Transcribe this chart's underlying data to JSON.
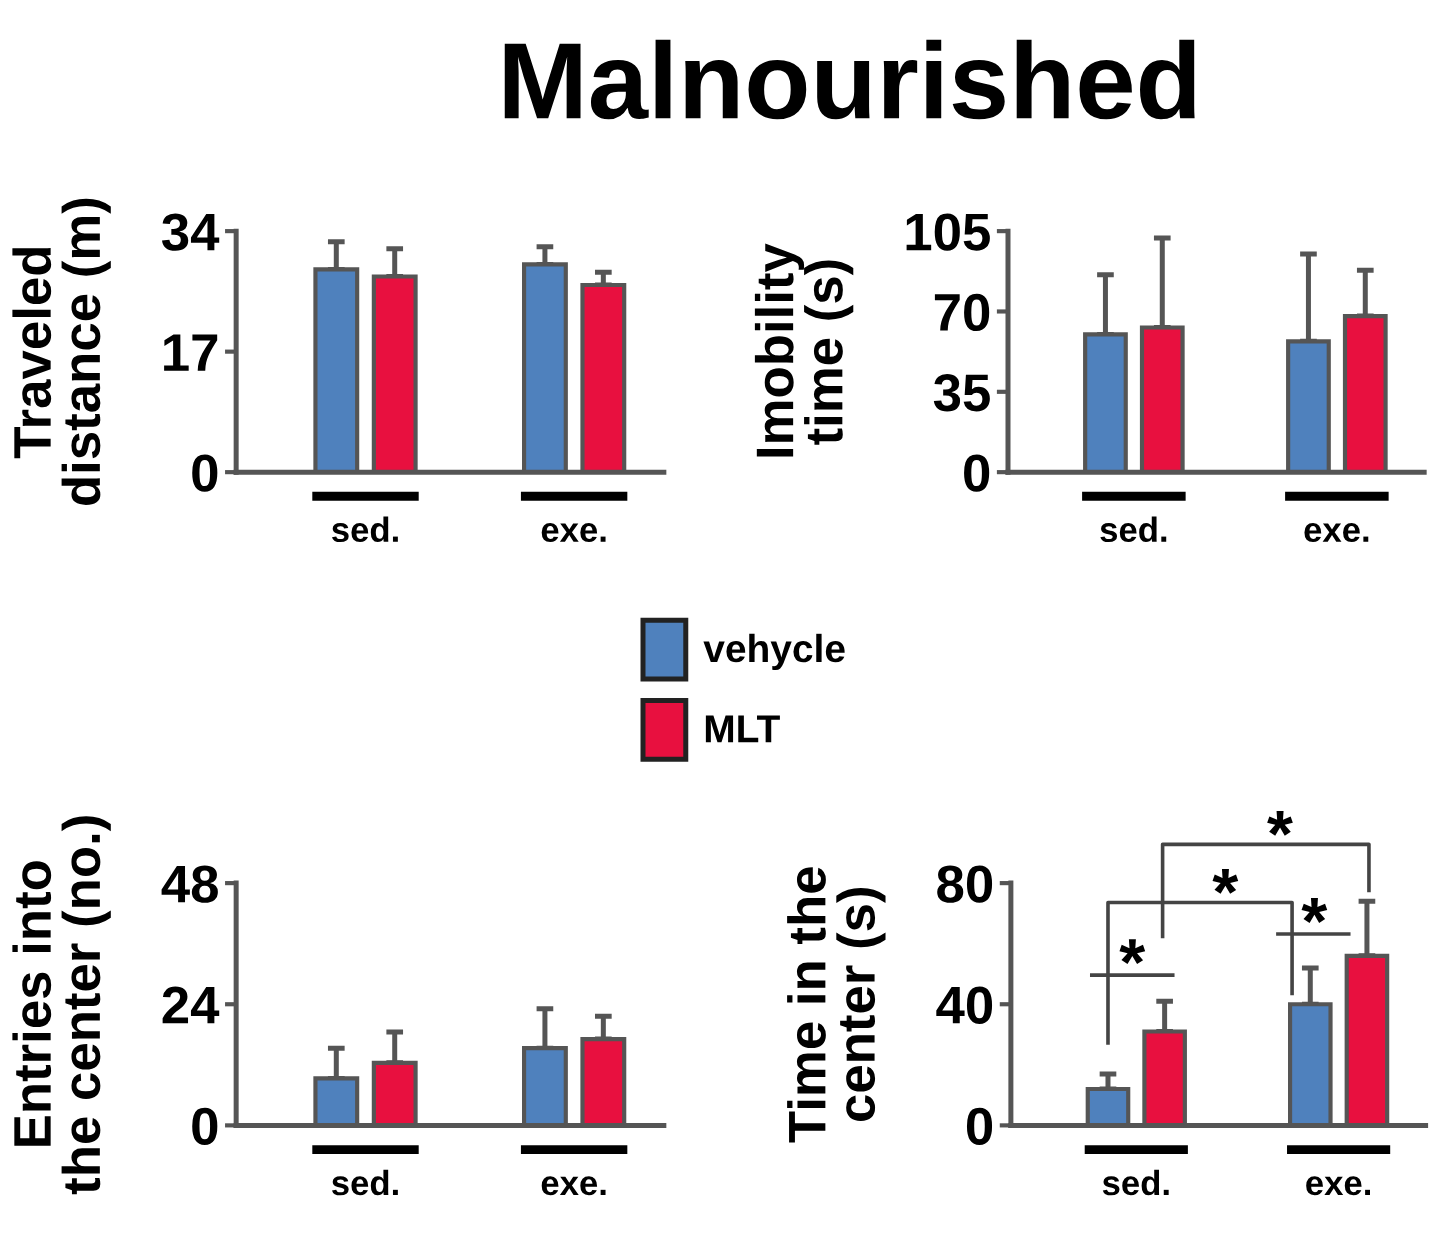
{
  "chart_data": [
    {
      "type": "bar",
      "title": "Malnourished",
      "ylabel": "Traveled distance (m)",
      "categories": [
        "sed.",
        "exe."
      ],
      "series": [
        {
          "name": "vehycle",
          "color": "#4f81bd",
          "values": [
            28.6,
            29.3
          ],
          "errors": [
            [
              28.6,
              32.5
            ],
            [
              29.3,
              31.8
            ]
          ]
        },
        {
          "name": "MLT",
          "color": "#e8103f",
          "values": [
            27.6,
            26.4
          ],
          "errors": [
            [
              27.6,
              31.5
            ],
            [
              26.4,
              28.2
            ]
          ]
        }
      ],
      "ylim": [
        0,
        34
      ],
      "yticks": [
        0,
        17,
        34
      ],
      "legend": "center"
    },
    {
      "type": "bar",
      "ylabel": "Imobility time (s)",
      "categories": [
        "sed.",
        "exe."
      ],
      "series": [
        {
          "color": "#4f81bd",
          "values": [
            60,
            57
          ],
          "errors": [
            [
              60,
              86
            ],
            [
              57,
              95
            ]
          ]
        },
        {
          "color": "#e8103f",
          "values": [
            63,
            68
          ],
          "errors": [
            [
              63,
              102
            ],
            [
              68,
              88
            ]
          ]
        }
      ],
      "ylim": [
        0,
        105
      ],
      "yticks": [
        0,
        35,
        70,
        105
      ]
    },
    {
      "type": "bar",
      "ylabel": "Entries into the center (no.)",
      "categories": [
        "sed.",
        "exe."
      ],
      "series": [
        {
          "color": "#4f81bd",
          "values": [
            9.3,
            15.3
          ],
          "errors": [
            [
              9.3,
              15.3
            ],
            [
              15.3,
              23.1
            ]
          ]
        },
        {
          "color": "#e8103f",
          "values": [
            12.4,
            17.1
          ],
          "errors": [
            [
              12.4,
              18.5
            ],
            [
              17.1,
              21.6
            ]
          ]
        }
      ],
      "ylim": [
        0,
        48
      ],
      "yticks": [
        0,
        24,
        48
      ]
    },
    {
      "type": "bar",
      "ylabel": "Time in the center (s)",
      "categories": [
        "sed.",
        "exe."
      ],
      "series": [
        {
          "color": "#4f81bd",
          "values": [
            12,
            40
          ],
          "errors": [
            [
              12,
              17
            ],
            [
              40,
              52
            ]
          ]
        },
        {
          "color": "#e8103f",
          "values": [
            31,
            56
          ],
          "errors": [
            [
              31,
              41
            ],
            [
              56,
              74
            ]
          ]
        }
      ],
      "ylim": [
        0,
        80
      ],
      "yticks": [
        0,
        40,
        80
      ],
      "annotations": [
        "*",
        "*",
        "*",
        "*"
      ]
    }
  ]
}
